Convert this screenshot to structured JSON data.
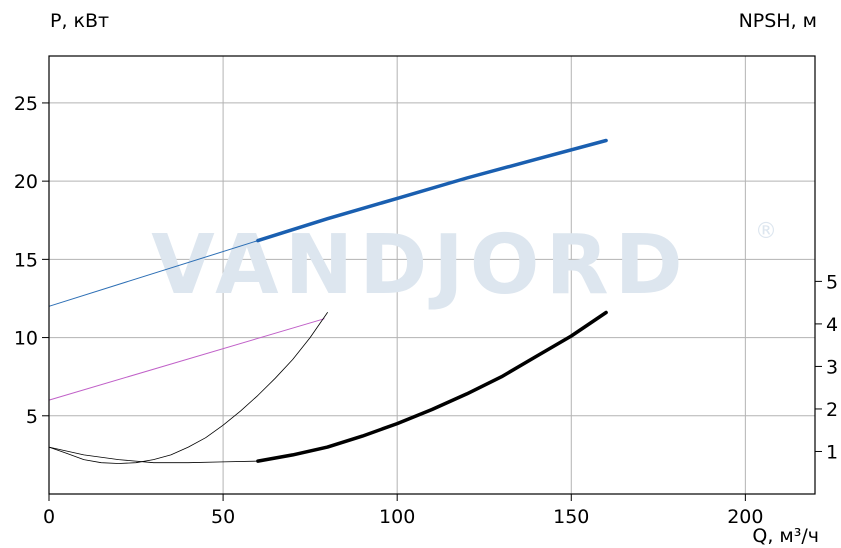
{
  "chart_data": {
    "type": "line",
    "xlabel": "Q, м³/ч",
    "ylabel_left": "P, кВт",
    "ylabel_right": "NPSH, м",
    "watermark": "VANDJORD",
    "watermark_mark": "®",
    "xlim": [
      0,
      220
    ],
    "ylim_left": [
      0,
      28
    ],
    "ylim_right": [
      0,
      10.3
    ],
    "x_ticks": [
      "0",
      "50",
      "100",
      "150",
      "200"
    ],
    "y_left_ticks": [
      "5",
      "10",
      "15",
      "20",
      "25"
    ],
    "y_right_ticks": [
      "1",
      "2",
      "3",
      "4",
      "5"
    ],
    "grid": true,
    "colors": {
      "power": "#1a5fb0",
      "power_thin": "#2d6fb5",
      "magenta": "#c060c8",
      "npsh": "#000000",
      "grid": "#b3b3b3",
      "watermark": "#dde6ef"
    },
    "series": [
      {
        "key": "power_ext",
        "axis": "left",
        "color": "#2d6fb5",
        "width": 1,
        "x": [
          0,
          60
        ],
        "y": [
          12.0,
          16.2
        ]
      },
      {
        "key": "power",
        "axis": "left",
        "color": "#1a5fb0",
        "width": 3.5,
        "x": [
          60,
          80,
          100,
          120,
          140,
          160
        ],
        "y": [
          16.2,
          17.6,
          18.9,
          20.2,
          21.4,
          22.6
        ]
      },
      {
        "key": "magenta",
        "axis": "left",
        "color": "#c060c8",
        "width": 1,
        "x": [
          0,
          79
        ],
        "y": [
          6.0,
          11.2
        ]
      },
      {
        "key": "parabola",
        "axis": "left",
        "color": "#000000",
        "width": 0.8,
        "x": [
          0,
          5,
          10,
          15,
          20,
          25,
          30,
          35,
          40,
          45,
          50,
          55,
          60,
          65,
          70,
          75,
          80
        ],
        "y": [
          3.0,
          2.6,
          2.2,
          2.0,
          1.95,
          2.0,
          2.2,
          2.5,
          3.0,
          3.6,
          4.4,
          5.3,
          6.3,
          7.4,
          8.6,
          10.0,
          11.6
        ]
      },
      {
        "key": "npsh_ext",
        "axis": "left",
        "color": "#000000",
        "width": 0.8,
        "x": [
          0,
          10,
          20,
          30,
          40,
          50,
          60
        ],
        "y": [
          3.0,
          2.5,
          2.2,
          2.0,
          2.0,
          2.05,
          2.1
        ]
      },
      {
        "key": "npsh",
        "axis": "left",
        "color": "#000000",
        "width": 3.5,
        "x": [
          60,
          70,
          80,
          90,
          100,
          110,
          120,
          130,
          140,
          150,
          160
        ],
        "y": [
          2.1,
          2.5,
          3.0,
          3.7,
          4.5,
          5.4,
          6.4,
          7.5,
          8.8,
          10.1,
          11.6
        ]
      }
    ]
  }
}
